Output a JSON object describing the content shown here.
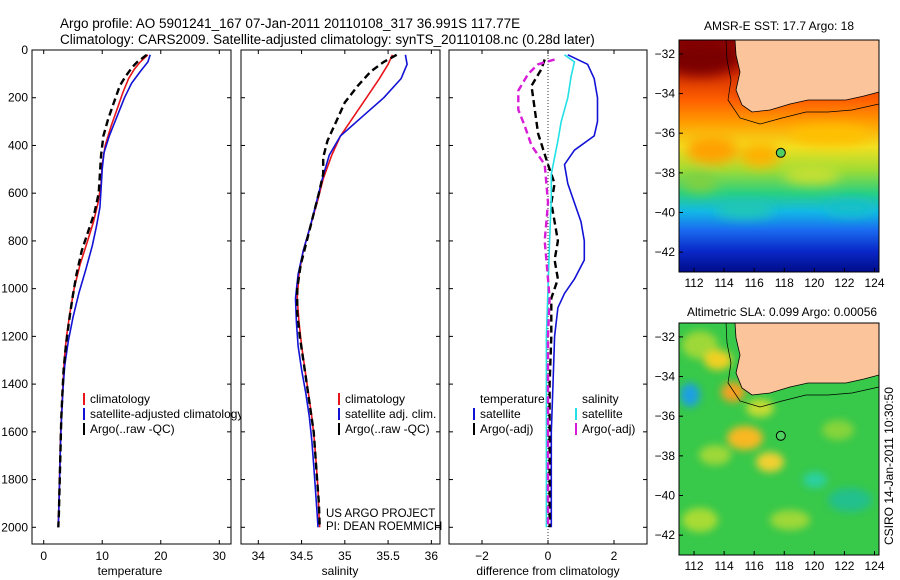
{
  "header": {
    "line1": "Argo profile: AO 5901241_167 07-Jan-2011 20110108_317 36.991S 117.77E",
    "line2": "Climatology: CARS2009. Satellite-adjusted climatology: synTS_20110108.nc (0.28d later)"
  },
  "side_text": "CSIRO 14-Jan-2011 10:30:50",
  "colors": {
    "red": "#e8141a",
    "blue": "#1212d6",
    "black": "#000000",
    "cyan": "#22e0e6",
    "magenta": "#d81bd8"
  },
  "chart_data": [
    {
      "id": "temperature",
      "type": "line",
      "xlabel": "temperature",
      "xlim": [
        -2,
        32
      ],
      "xticks": [
        0,
        10,
        20,
        30
      ],
      "ylim": [
        0,
        2070
      ],
      "yticks": [
        0,
        200,
        400,
        600,
        800,
        1000,
        1200,
        1400,
        1600,
        1800,
        2000
      ],
      "y_reversed": true,
      "legend": [
        "climatology",
        "satellite-adjusted climatology",
        "Argo(..raw -QC)"
      ],
      "series": [
        {
          "name": "climatology",
          "color": "red",
          "dash": false,
          "points": [
            [
              17.8,
              20
            ],
            [
              16.5,
              50
            ],
            [
              15.5,
              80
            ],
            [
              14.5,
              120
            ],
            [
              13.5,
              180
            ],
            [
              12.5,
              250
            ],
            [
              11.5,
              320
            ],
            [
              10.5,
              400
            ],
            [
              10.0,
              480
            ],
            [
              9.8,
              560
            ],
            [
              9.3,
              640
            ],
            [
              8.5,
              720
            ],
            [
              7.5,
              800
            ],
            [
              6.2,
              900
            ],
            [
              5.2,
              1000
            ],
            [
              4.5,
              1100
            ],
            [
              3.9,
              1200
            ],
            [
              3.5,
              1300
            ],
            [
              3.3,
              1400
            ],
            [
              3.1,
              1500
            ],
            [
              2.9,
              1600
            ],
            [
              2.8,
              1700
            ],
            [
              2.7,
              1800
            ],
            [
              2.6,
              1900
            ],
            [
              2.5,
              2000
            ]
          ]
        },
        {
          "name": "satellite-adjusted climatology",
          "color": "blue",
          "dash": false,
          "points": [
            [
              18.2,
              20
            ],
            [
              17.8,
              50
            ],
            [
              16.5,
              90
            ],
            [
              15.0,
              140
            ],
            [
              13.8,
              200
            ],
            [
              12.5,
              280
            ],
            [
              11.2,
              360
            ],
            [
              10.3,
              430
            ],
            [
              10.0,
              500
            ],
            [
              9.8,
              580
            ],
            [
              9.6,
              660
            ],
            [
              9.0,
              740
            ],
            [
              8.3,
              820
            ],
            [
              7.2,
              920
            ],
            [
              6.0,
              1020
            ],
            [
              5.0,
              1120
            ],
            [
              4.2,
              1220
            ],
            [
              3.6,
              1320
            ],
            [
              3.3,
              1420
            ],
            [
              3.1,
              1520
            ],
            [
              2.9,
              1620
            ],
            [
              2.8,
              1720
            ],
            [
              2.7,
              1820
            ],
            [
              2.6,
              1920
            ],
            [
              2.5,
              2000
            ]
          ]
        },
        {
          "name": "Argo(..raw -QC)",
          "color": "black",
          "dash": true,
          "points": [
            [
              17.6,
              20
            ],
            [
              16.0,
              50
            ],
            [
              15.2,
              70
            ],
            [
              14.0,
              110
            ],
            [
              13.0,
              150
            ],
            [
              12.0,
              220
            ],
            [
              11.0,
              290
            ],
            [
              10.2,
              360
            ],
            [
              9.8,
              440
            ],
            [
              9.6,
              520
            ],
            [
              9.4,
              600
            ],
            [
              8.7,
              680
            ],
            [
              7.6,
              760
            ],
            [
              6.5,
              840
            ],
            [
              5.6,
              940
            ],
            [
              4.9,
              1040
            ],
            [
              4.3,
              1140
            ],
            [
              3.8,
              1240
            ],
            [
              3.4,
              1340
            ],
            [
              3.2,
              1440
            ],
            [
              3.0,
              1540
            ],
            [
              2.9,
              1640
            ],
            [
              2.8,
              1740
            ],
            [
              2.7,
              1840
            ],
            [
              2.6,
              1940
            ],
            [
              2.5,
              2000
            ]
          ]
        }
      ]
    },
    {
      "id": "salinity",
      "type": "line",
      "xlabel": "salinity",
      "xlim": [
        33.8,
        36.1
      ],
      "xticks": [
        34,
        34.5,
        35,
        35.5,
        36
      ],
      "ylim": [
        0,
        2070
      ],
      "yticks": [
        0,
        200,
        400,
        600,
        800,
        1000,
        1200,
        1400,
        1600,
        1800,
        2000
      ],
      "y_reversed": true,
      "legend": [
        "climatology",
        "satellite adj. clim.",
        "Argo(..raw -QC)"
      ],
      "annotation": [
        "US ARGO PROJECT",
        "PI: DEAN ROEMMICH"
      ],
      "series": [
        {
          "name": "climatology",
          "color": "red",
          "dash": false,
          "points": [
            [
              35.55,
              20
            ],
            [
              35.5,
              60
            ],
            [
              35.4,
              120
            ],
            [
              35.25,
              200
            ],
            [
              35.1,
              280
            ],
            [
              34.95,
              360
            ],
            [
              34.85,
              440
            ],
            [
              34.75,
              540
            ],
            [
              34.68,
              640
            ],
            [
              34.6,
              740
            ],
            [
              34.52,
              840
            ],
            [
              34.47,
              940
            ],
            [
              34.45,
              1040
            ],
            [
              34.47,
              1140
            ],
            [
              34.5,
              1240
            ],
            [
              34.54,
              1340
            ],
            [
              34.58,
              1440
            ],
            [
              34.62,
              1540
            ],
            [
              34.65,
              1640
            ],
            [
              34.67,
              1740
            ],
            [
              34.69,
              1840
            ],
            [
              34.7,
              1940
            ],
            [
              34.71,
              2000
            ]
          ]
        },
        {
          "name": "satellite adj. clim.",
          "color": "blue",
          "dash": false,
          "points": [
            [
              35.7,
              20
            ],
            [
              35.72,
              60
            ],
            [
              35.65,
              120
            ],
            [
              35.45,
              200
            ],
            [
              35.2,
              280
            ],
            [
              34.95,
              360
            ],
            [
              34.82,
              440
            ],
            [
              34.74,
              540
            ],
            [
              34.67,
              640
            ],
            [
              34.6,
              740
            ],
            [
              34.52,
              840
            ],
            [
              34.46,
              940
            ],
            [
              34.43,
              1040
            ],
            [
              34.44,
              1140
            ],
            [
              34.46,
              1240
            ],
            [
              34.5,
              1340
            ],
            [
              34.55,
              1440
            ],
            [
              34.59,
              1540
            ],
            [
              34.62,
              1640
            ],
            [
              34.64,
              1740
            ],
            [
              34.66,
              1840
            ],
            [
              34.68,
              1940
            ],
            [
              34.69,
              2000
            ]
          ]
        },
        {
          "name": "Argo(..raw -QC)",
          "color": "black",
          "dash": true,
          "points": [
            [
              35.6,
              20
            ],
            [
              35.45,
              50
            ],
            [
              35.3,
              90
            ],
            [
              35.15,
              150
            ],
            [
              35.0,
              220
            ],
            [
              34.9,
              300
            ],
            [
              34.8,
              380
            ],
            [
              34.75,
              450
            ],
            [
              34.75,
              520
            ],
            [
              34.7,
              600
            ],
            [
              34.63,
              700
            ],
            [
              34.56,
              800
            ],
            [
              34.49,
              900
            ],
            [
              34.45,
              1000
            ],
            [
              34.45,
              1100
            ],
            [
              34.48,
              1200
            ],
            [
              34.52,
              1300
            ],
            [
              34.56,
              1400
            ],
            [
              34.6,
              1500
            ],
            [
              34.64,
              1600
            ],
            [
              34.66,
              1700
            ],
            [
              34.68,
              1800
            ],
            [
              34.7,
              1900
            ],
            [
              34.71,
              2000
            ]
          ]
        }
      ]
    },
    {
      "id": "difference",
      "type": "line",
      "xlabel": "difference from climatology",
      "xlim": [
        -3,
        3
      ],
      "xticks": [
        -2,
        0,
        2
      ],
      "ylim": [
        0,
        2070
      ],
      "yticks": [
        0,
        200,
        400,
        600,
        800,
        1000,
        1200,
        1400,
        1600,
        1800,
        2000
      ],
      "y_reversed": true,
      "legend_temperature": [
        "temperature",
        "satellite",
        "Argo(-adj)"
      ],
      "legend_salinity": [
        "salinity",
        "satellite",
        "Argo(-adj)"
      ],
      "series": [
        {
          "name": "temperature satellite",
          "color": "blue",
          "dash": false,
          "points": [
            [
              0.6,
              20
            ],
            [
              1.2,
              60
            ],
            [
              1.4,
              120
            ],
            [
              1.5,
              200
            ],
            [
              1.5,
              300
            ],
            [
              1.4,
              360
            ],
            [
              0.8,
              420
            ],
            [
              0.5,
              480
            ],
            [
              0.6,
              560
            ],
            [
              0.8,
              640
            ],
            [
              1.0,
              720
            ],
            [
              1.1,
              800
            ],
            [
              1.1,
              880
            ],
            [
              0.8,
              960
            ],
            [
              0.5,
              1020
            ],
            [
              0.3,
              1080
            ],
            [
              0.2,
              1200
            ],
            [
              0.15,
              1400
            ],
            [
              0.1,
              1600
            ],
            [
              0.1,
              1800
            ],
            [
              0.1,
              2000
            ]
          ]
        },
        {
          "name": "temperature Argo(-adj)",
          "color": "black",
          "dash": true,
          "points": [
            [
              -0.1,
              40
            ],
            [
              -0.2,
              80
            ],
            [
              -0.5,
              150
            ],
            [
              -0.4,
              250
            ],
            [
              -0.3,
              350
            ],
            [
              0.0,
              480
            ],
            [
              0.2,
              560
            ],
            [
              0.1,
              640
            ],
            [
              0.2,
              720
            ],
            [
              0.3,
              800
            ],
            [
              0.2,
              880
            ],
            [
              0.3,
              960
            ],
            [
              0.1,
              1040
            ],
            [
              0.1,
              1200
            ],
            [
              0.05,
              1400
            ],
            [
              0.05,
              1600
            ],
            [
              0.05,
              1800
            ],
            [
              0.05,
              2000
            ]
          ]
        },
        {
          "name": "salinity satellite",
          "color": "cyan",
          "dash": false,
          "points": [
            [
              0.5,
              20
            ],
            [
              0.8,
              50
            ],
            [
              0.7,
              110
            ],
            [
              0.6,
              200
            ],
            [
              0.4,
              300
            ],
            [
              0.3,
              380
            ],
            [
              0.2,
              450
            ],
            [
              0.1,
              520
            ],
            [
              0.1,
              620
            ],
            [
              0.05,
              800
            ],
            [
              0.0,
              1000
            ],
            [
              -0.05,
              1200
            ],
            [
              -0.05,
              1400
            ],
            [
              -0.05,
              1600
            ],
            [
              -0.05,
              1800
            ],
            [
              -0.05,
              2000
            ]
          ]
        },
        {
          "name": "salinity Argo(-adj)",
          "color": "magenta",
          "dash": true,
          "points": [
            [
              0.2,
              40
            ],
            [
              -0.3,
              60
            ],
            [
              -0.6,
              100
            ],
            [
              -0.9,
              170
            ],
            [
              -0.9,
              250
            ],
            [
              -0.7,
              320
            ],
            [
              -0.5,
              400
            ],
            [
              -0.1,
              480
            ],
            [
              -0.05,
              560
            ],
            [
              0.0,
              640
            ],
            [
              -0.05,
              720
            ],
            [
              -0.1,
              800
            ],
            [
              -0.05,
              880
            ],
            [
              0.0,
              960
            ],
            [
              0.05,
              1040
            ],
            [
              0.0,
              1200
            ],
            [
              0.0,
              1400
            ],
            [
              0.0,
              1600
            ],
            [
              0.0,
              1800
            ],
            [
              0.0,
              2000
            ]
          ]
        }
      ]
    },
    {
      "id": "sst_map",
      "type": "heatmap",
      "title": "AMSR-E SST: 17.7 Argo: 18",
      "xlim": [
        111,
        124.3
      ],
      "ylim": [
        -43,
        -31.3
      ],
      "xticks": [
        112,
        114,
        116,
        118,
        120,
        122,
        124
      ],
      "yticks": [
        -32,
        -34,
        -36,
        -38,
        -40,
        -42
      ],
      "marker": [
        117.77,
        -36.99
      ]
    },
    {
      "id": "sla_map",
      "type": "heatmap",
      "title": "Altimetric SLA: 0.099 Argo: 0.00056",
      "xlim": [
        111,
        124.3
      ],
      "ylim": [
        -43,
        -31.3
      ],
      "xticks": [
        112,
        114,
        116,
        118,
        120,
        122,
        124
      ],
      "yticks": [
        -32,
        -34,
        -36,
        -38,
        -40,
        -42
      ],
      "marker": [
        117.77,
        -36.99
      ]
    }
  ]
}
